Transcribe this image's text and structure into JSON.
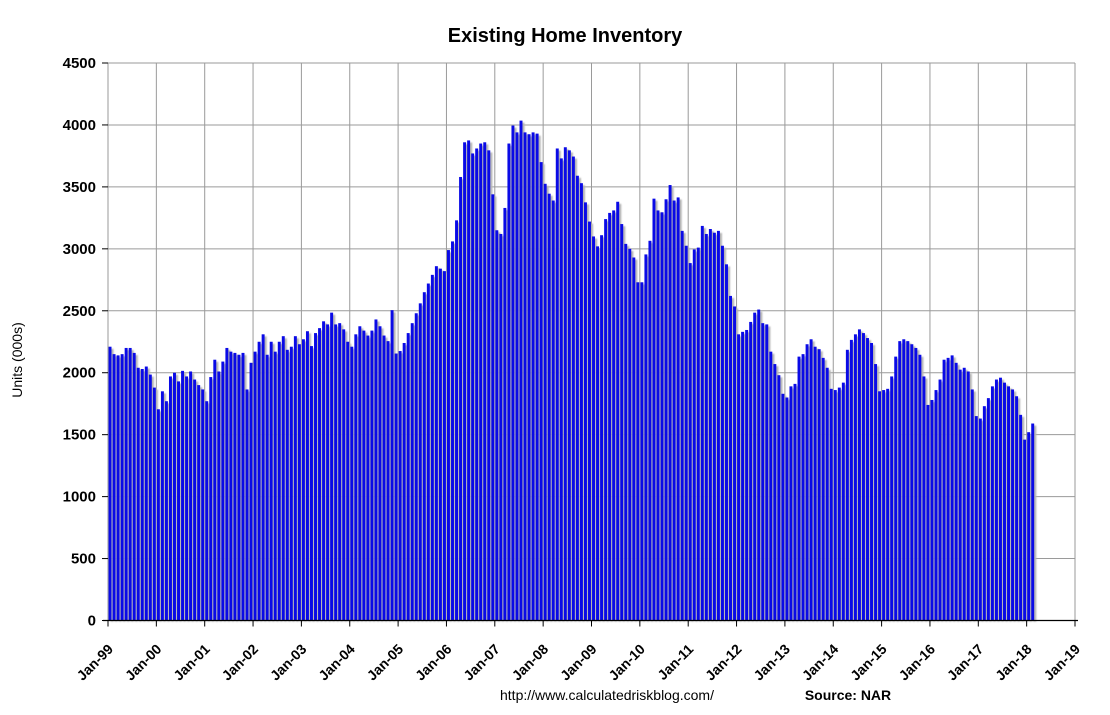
{
  "title": "Existing Home Inventory",
  "footer": {
    "url": "http://www.calculatedriskblog.com/",
    "source": "Source: NAR"
  },
  "colors": {
    "bar": "#0a0ae6",
    "bar_shadow": "#b4b4b4",
    "gridline": "#9a9a9a",
    "axis": "#000000",
    "background": "#ffffff"
  },
  "chart_data": {
    "type": "bar",
    "title": "Existing Home Inventory",
    "xlabel": "",
    "ylabel": "Units (000s)",
    "ylim": [
      0,
      4500
    ],
    "y_ticks": [
      0,
      500,
      1000,
      1500,
      2000,
      2500,
      3000,
      3500,
      4000,
      4500
    ],
    "x_tick_labels": [
      "Jan-99",
      "Jan-00",
      "Jan-01",
      "Jan-02",
      "Jan-03",
      "Jan-04",
      "Jan-05",
      "Jan-06",
      "Jan-07",
      "Jan-08",
      "Jan-09",
      "Jan-10",
      "Jan-11",
      "Jan-12",
      "Jan-13",
      "Jan-14",
      "Jan-15",
      "Jan-16",
      "Jan-17",
      "Jan-18",
      "Jan-19"
    ],
    "grid": true,
    "legend": false,
    "start_month": "1999-01",
    "end_month": "2018-02",
    "frequency": "monthly",
    "units": "thousands of homes",
    "values": [
      2210,
      2150,
      2140,
      2150,
      2200,
      2200,
      2160,
      2040,
      2030,
      2050,
      1985,
      1880,
      1705,
      1850,
      1770,
      1970,
      2000,
      1930,
      2015,
      1970,
      2010,
      1945,
      1900,
      1865,
      1770,
      1965,
      2105,
      2010,
      2090,
      2200,
      2170,
      2160,
      2145,
      2160,
      1865,
      2080,
      2170,
      2250,
      2310,
      2145,
      2250,
      2170,
      2250,
      2295,
      2185,
      2210,
      2295,
      2230,
      2270,
      2335,
      2215,
      2320,
      2360,
      2415,
      2390,
      2485,
      2390,
      2400,
      2350,
      2250,
      2210,
      2310,
      2375,
      2340,
      2300,
      2340,
      2430,
      2375,
      2300,
      2255,
      2505,
      2155,
      2175,
      2240,
      2320,
      2400,
      2480,
      2560,
      2650,
      2720,
      2790,
      2860,
      2840,
      2820,
      2990,
      3060,
      3230,
      3580,
      3860,
      3875,
      3770,
      3810,
      3850,
      3860,
      3795,
      3440,
      3150,
      3120,
      3330,
      3850,
      3995,
      3940,
      4035,
      3940,
      3925,
      3940,
      3930,
      3700,
      3525,
      3445,
      3390,
      3810,
      3730,
      3820,
      3795,
      3745,
      3590,
      3530,
      3375,
      3220,
      3100,
      3020,
      3110,
      3240,
      3290,
      3310,
      3380,
      3200,
      3040,
      3000,
      2930,
      2730,
      2730,
      2955,
      3065,
      3405,
      3310,
      3295,
      3400,
      3515,
      3390,
      3415,
      3145,
      3025,
      2885,
      2995,
      3010,
      3185,
      3120,
      3160,
      3130,
      3145,
      3025,
      2875,
      2620,
      2535,
      2310,
      2330,
      2345,
      2410,
      2485,
      2510,
      2400,
      2390,
      2170,
      2070,
      1980,
      1830,
      1800,
      1890,
      1910,
      2130,
      2150,
      2230,
      2270,
      2210,
      2190,
      2120,
      2040,
      1870,
      1860,
      1880,
      1920,
      2185,
      2265,
      2310,
      2350,
      2320,
      2280,
      2240,
      2070,
      1850,
      1860,
      1870,
      1970,
      2130,
      2255,
      2270,
      2255,
      2230,
      2200,
      2145,
      1970,
      1740,
      1780,
      1860,
      1945,
      2105,
      2120,
      2140,
      2080,
      2025,
      2040,
      2010,
      1865,
      1650,
      1630,
      1730,
      1795,
      1890,
      1945,
      1960,
      1920,
      1890,
      1865,
      1810,
      1660,
      1460,
      1520,
      1590
    ]
  }
}
